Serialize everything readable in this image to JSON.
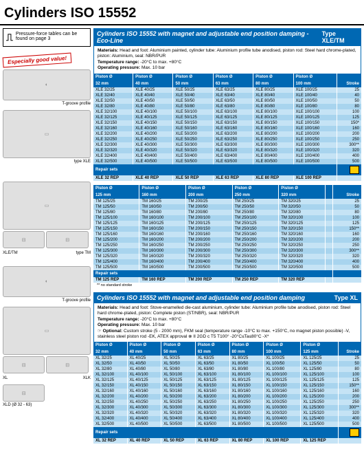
{
  "page_title": "Cylinders ISO 15552",
  "sidebar_note": "Pressure-force tables can be found on page 3",
  "callout": "Especially good value!",
  "captions": {
    "tgroove": "T-groove profile",
    "type_xle": "type XLE",
    "xle_tm": "XLE/TM",
    "type_tm": "type TM",
    "tgroove2": "T-groove profile",
    "xl": "XL",
    "xlk": "XLK",
    "xld": "XLD (Ø 32 - 63)"
  },
  "section1": {
    "title": "Cylinders ISO 15552 with magnet and adjustable end position damping - Eco-Line",
    "type": "Type XLE/TM",
    "meta_materials": "Head and foot: Aluminium painted, cylinder tube: Aluminium profile tube anodised, piston rod: Steel hard chrome-plated, piston: Aluminium, seal: NBR/PUR",
    "meta_temp": "-20°C to max. +80°C",
    "meta_press": "Max. 10 bar",
    "headers": [
      "Piston Ø",
      "Piston Ø",
      "Piston Ø",
      "Piston Ø",
      "Piston Ø",
      "Piston Ø",
      ""
    ],
    "sizes": [
      "32 mm",
      "40 mm",
      "50 mm",
      "63 mm",
      "80 mm",
      "100 mm",
      "Stroke"
    ],
    "rows": [
      [
        "XLE 32/25",
        "XLE 40/25",
        "XLE 50/25",
        "XLE 63/25",
        "XLE 80/25",
        "XLE 100/25",
        "25"
      ],
      [
        "XLE 32/40",
        "XLE 40/40",
        "XLE 50/40",
        "XLE 63/40",
        "XLE 80/40",
        "XLE 100/40",
        "40"
      ],
      [
        "XLE 32/50",
        "XLE 40/50",
        "XLE 50/50",
        "XLE 63/50",
        "XLE 80/50",
        "XLE 100/50",
        "50"
      ],
      [
        "XLE 32/80",
        "XLE 40/80",
        "XLE 50/80",
        "XLE 63/80",
        "XLE 80/80",
        "XLE 100/80",
        "80"
      ],
      [
        "XLE 32/100",
        "XLE 40/100",
        "XLE 50/100",
        "XLE 63/100",
        "XLE 80/100",
        "XLE 100/100",
        "100"
      ],
      [
        "XLE 32/125",
        "XLE 40/125",
        "XLE 50/125",
        "XLE 63/125",
        "XLE 80/125",
        "XLE 100/125",
        "125"
      ],
      [
        "XLE 32/150",
        "XLE 40/150",
        "XLE 50/150",
        "XLE 63/150",
        "XLE 80/150",
        "XLE 100/150",
        "150*"
      ],
      [
        "XLE 32/160",
        "XLE 40/160",
        "XLE 50/160",
        "XLE 63/160",
        "XLE 80/160",
        "XLE 100/160",
        "160"
      ],
      [
        "XLE 32/200",
        "XLE 40/200",
        "XLE 50/200",
        "XLE 63/200",
        "XLE 80/200",
        "XLE 100/200",
        "200"
      ],
      [
        "XLE 32/250",
        "XLE 40/250",
        "XLE 50/250",
        "XLE 63/250",
        "XLE 80/250",
        "XLE 100/250",
        "250"
      ],
      [
        "XLE 32/300",
        "XLE 40/300",
        "XLE 50/300",
        "XLE 63/300",
        "XLE 80/300",
        "XLE 100/300",
        "300**"
      ],
      [
        "XLE 32/320",
        "XLE 40/320",
        "XLE 50/320",
        "XLE 63/320",
        "XLE 80/320",
        "XLE 100/320",
        "320"
      ],
      [
        "XLE 32/400",
        "XLE 40/400",
        "XLE 50/400",
        "XLE 63/400",
        "XLE 80/400",
        "XLE 100/400",
        "400"
      ],
      [
        "XLE 32/500",
        "XLE 40/500",
        "XLE 50/500",
        "XLE 63/500",
        "XLE 80/500",
        "XLE 100/500",
        "500"
      ]
    ],
    "repair_label": "Repair sets",
    "repair": [
      "XLE 32 REP",
      "XLE 40 REP",
      "XLE 50 REP",
      "XLE 63 REP",
      "XLE 80 REP",
      "XLE 100 REP",
      ""
    ]
  },
  "section2": {
    "headers": [
      "Piston Ø",
      "Piston Ø",
      "Piston Ø",
      "Piston Ø",
      "Piston Ø",
      "",
      ""
    ],
    "sizes": [
      "125 mm",
      "160 mm",
      "200 mm",
      "250 mm",
      "320 mm",
      "",
      "Stroke"
    ],
    "rows": [
      [
        "TM 125/25",
        "TM 160/25",
        "TM 200/25",
        "TM 250/25",
        "TM 320/25",
        "",
        "25"
      ],
      [
        "TM 125/50",
        "TM 160/50",
        "TM 200/50",
        "TM 250/50",
        "TM 320/50",
        "",
        "50"
      ],
      [
        "TM 125/80",
        "TM 160/80",
        "TM 200/80",
        "TM 250/80",
        "TM 320/80",
        "",
        "80"
      ],
      [
        "TM 125/100",
        "TM 160/100",
        "TM 200/100",
        "TM 250/100",
        "TM 320/100",
        "",
        "100"
      ],
      [
        "TM 125/125",
        "TM 160/125",
        "TM 200/125",
        "TM 250/125",
        "TM 320/125",
        "",
        "125"
      ],
      [
        "TM 125/150",
        "TM 160/150",
        "TM 200/150",
        "TM 250/150",
        "TM 320/150",
        "",
        "150**"
      ],
      [
        "TM 125/160",
        "TM 160/160",
        "TM 200/160",
        "TM 250/160",
        "TM 320/160",
        "",
        "160"
      ],
      [
        "TM 125/200",
        "TM 160/200",
        "TM 200/200",
        "TM 250/200",
        "TM 320/200",
        "",
        "200"
      ],
      [
        "TM 125/250",
        "TM 160/250",
        "TM 200/250",
        "TM 250/250",
        "TM 320/250",
        "",
        "250"
      ],
      [
        "TM 125/300",
        "TM 160/300",
        "TM 200/300",
        "TM 250/300",
        "TM 320/300",
        "",
        "300**"
      ],
      [
        "TM 125/320",
        "TM 160/320",
        "TM 200/320",
        "TM 250/320",
        "TM 320/320",
        "",
        "320"
      ],
      [
        "TM 125/400",
        "TM 160/400",
        "TM 200/400",
        "TM 250/400",
        "TM 320/400",
        "",
        "400"
      ],
      [
        "TM 125/500",
        "TM 160/500",
        "TM 200/500",
        "TM 250/500",
        "TM 320/500",
        "",
        "500"
      ]
    ],
    "repair_label": "Repair sets",
    "repair": [
      "TM 125 REP",
      "TM 160 REP",
      "TM 200 REP",
      "TM 250 REP",
      "TM 320 REP",
      "",
      ""
    ],
    "footnote": "** no standard stroke"
  },
  "section3": {
    "title": "Cylinders ISO 15552 with magnet and adjustable end position damping",
    "type": "Type XL",
    "meta_materials": "Head and foot: Stove-enamelled die-cast aluminium, cylinder tube: Aluminium profile tube anodised, piston rod: Steel hard chrome-plated, piston: Complete piston (ST/NBR), seal: NBR/PUR",
    "meta_temp": "-20°C to max. +80°C",
    "meta_press": "Max. 10 bar",
    "meta_optional": "Custom stroke (5 - 2000 mm), FKM seal (temperature range -10°C to max. +150°C, no magnet piston possible) -V, stainless steel piston rod -EK, ATEX approval ⊗ II 2GD c T5 T100° -20°C≤Ta≤80°C -X*",
    "headers": [
      "Piston Ø",
      "Piston Ø",
      "Piston Ø",
      "Piston Ø",
      "Piston Ø",
      "Piston Ø",
      "Piston Ø",
      ""
    ],
    "sizes": [
      "32 mm",
      "40 mm",
      "50 mm",
      "63 mm",
      "80 mm",
      "100 mm",
      "125 mm",
      "Stroke"
    ],
    "rows": [
      [
        "XL 32/25",
        "XL 40/25",
        "XL 50/25",
        "XL 63/25",
        "XL 80/25",
        "XL 100/25",
        "XL 125/25",
        "25"
      ],
      [
        "XL 32/50",
        "XL 40/50",
        "XL 50/50",
        "XL 63/50",
        "XL 80/50",
        "XL 100/50",
        "XL 125/50",
        "50"
      ],
      [
        "XL 32/80",
        "XL 40/80",
        "XL 50/80",
        "XL 63/80",
        "XL 80/80",
        "XL 100/80",
        "XL 125/80",
        "80"
      ],
      [
        "XL 32/100",
        "XL 40/100",
        "XL 50/100",
        "XL 63/100",
        "XL 80/100",
        "XL 100/100",
        "XL 125/100",
        "100"
      ],
      [
        "XL 32/125",
        "XL 40/125",
        "XL 50/125",
        "XL 63/125",
        "XL 80/125",
        "XL 100/125",
        "XL 125/125",
        "125"
      ],
      [
        "XL 32/150",
        "XL 40/150",
        "XL 50/150",
        "XL 63/150",
        "XL 80/150",
        "XL 100/150",
        "XL 125/150",
        "150**"
      ],
      [
        "XL 32/160",
        "XL 40/160",
        "XL 50/160",
        "XL 63/160",
        "XL 80/160",
        "XL 100/160",
        "XL 125/160",
        "160"
      ],
      [
        "XL 32/200",
        "XL 40/200",
        "XL 50/200",
        "XL 63/200",
        "XL 80/200",
        "XL 100/200",
        "XL 125/200",
        "200"
      ],
      [
        "XL 32/250",
        "XL 40/250",
        "XL 50/250",
        "XL 63/250",
        "XL 80/250",
        "XL 100/250",
        "XL 125/250",
        "250"
      ],
      [
        "XL 32/300",
        "XL 40/300",
        "XL 50/300",
        "XL 63/300",
        "XL 80/300",
        "XL 100/300",
        "XL 125/300",
        "300**"
      ],
      [
        "XL 32/320",
        "XL 40/320",
        "XL 50/320",
        "XL 63/320",
        "XL 80/320",
        "XL 100/320",
        "XL 125/320",
        "320"
      ],
      [
        "XL 32/400",
        "XL 40/400",
        "XL 50/400",
        "XL 63/400",
        "XL 80/400",
        "XL 100/400",
        "XL 125/400",
        "400"
      ],
      [
        "XL 32/500",
        "XL 40/500",
        "XL 50/500",
        "XL 63/500",
        "XL 80/500",
        "XL 100/500",
        "XL 125/500",
        "500"
      ]
    ],
    "repair_label": "Repair sets",
    "repair": [
      "XL 32 REP",
      "XL 40 REP",
      "XL 50 REP",
      "XL 63 REP",
      "XL 80 REP",
      "XL 100 REP",
      "XL 125 REP",
      ""
    ]
  },
  "labels": {
    "materials": "Materials:",
    "temp": "Temperature range:",
    "press": "Operating pressure:",
    "optional": "Optional:"
  }
}
